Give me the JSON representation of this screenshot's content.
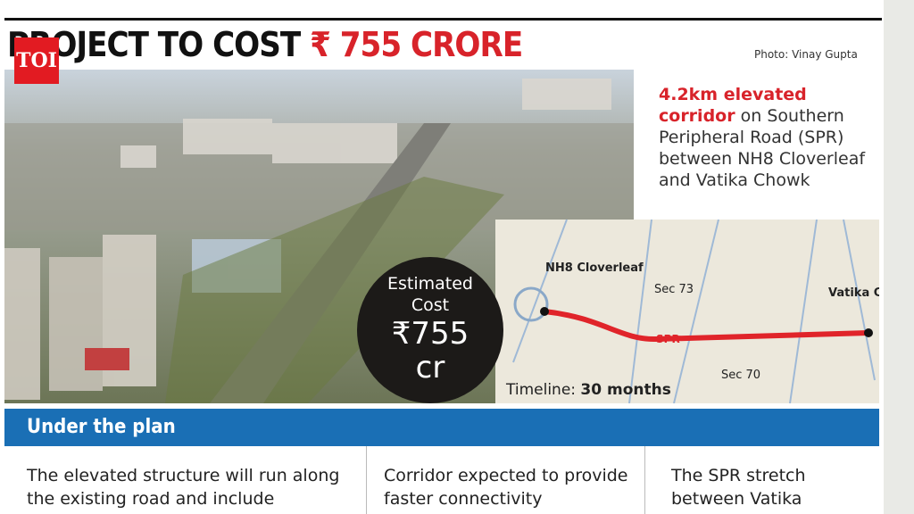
{
  "header": {
    "title_lead": "PROJECT TO COST",
    "title_highlight": "₹ 755 CRORE",
    "photo_credit": "Photo: Vinay Gupta",
    "logo": "TOI"
  },
  "info": {
    "highlight": "4.2km elevated corridor",
    "text": "on Southern Peripheral Road (SPR) between NH8 Cloverleaf and Vatika Chowk"
  },
  "badge": {
    "label": "Estimated Cost",
    "amount": "₹755",
    "unit": "cr"
  },
  "map": {
    "start": "NH8 Cloverleaf",
    "sector_top": "Sec 73",
    "end": "Vatika Chowk",
    "road": "SPR",
    "sector_bottom": "Sec 70",
    "timeline_label": "Timeline:",
    "timeline_value": "30 months"
  },
  "plan": {
    "heading": "Under the plan",
    "columns": [
      "The elevated structure will run along the existing road and include",
      "Corridor expected to provide faster connectivity",
      "The SPR stretch between Vatika"
    ]
  }
}
